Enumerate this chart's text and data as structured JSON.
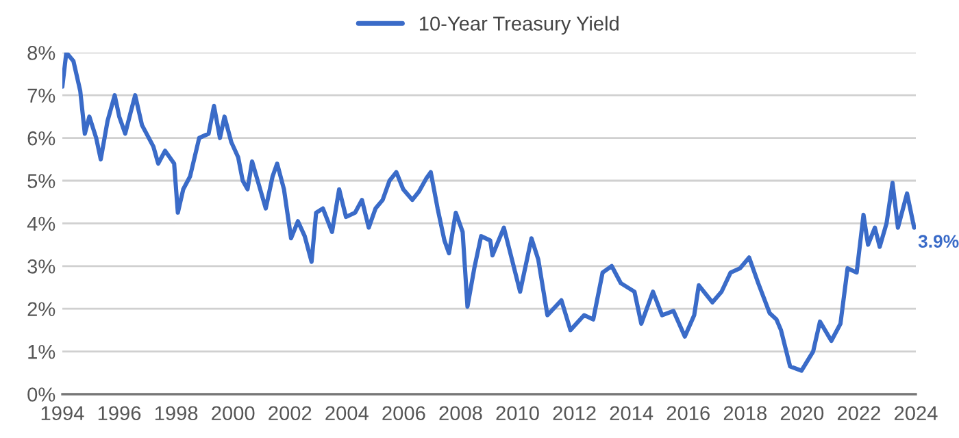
{
  "chart_data": {
    "type": "line",
    "x": [
      1994.0,
      1994.14,
      1994.39,
      1994.63,
      1994.79,
      1994.95,
      1995.19,
      1995.35,
      1995.59,
      1995.84,
      1996.0,
      1996.21,
      1996.4,
      1996.56,
      1996.8,
      1997.2,
      1997.37,
      1997.61,
      1997.93,
      1998.06,
      1998.25,
      1998.49,
      1998.81,
      1999.14,
      1999.33,
      1999.54,
      1999.7,
      1999.94,
      2000.18,
      2000.34,
      2000.51,
      2000.67,
      2000.91,
      2001.15,
      2001.39,
      2001.55,
      2001.79,
      2002.04,
      2002.28,
      2002.52,
      2002.76,
      2002.92,
      2003.16,
      2003.48,
      2003.73,
      2003.97,
      2004.29,
      2004.53,
      2004.77,
      2005.01,
      2005.26,
      2005.5,
      2005.74,
      2005.98,
      2006.3,
      2006.54,
      2006.79,
      2006.95,
      2007.19,
      2007.43,
      2007.59,
      2007.83,
      2008.07,
      2008.24,
      2008.48,
      2008.72,
      2009.04,
      2009.12,
      2009.52,
      2010.09,
      2010.49,
      2010.73,
      2011.05,
      2011.54,
      2011.86,
      2012.34,
      2012.66,
      2012.99,
      2013.31,
      2013.63,
      2014.11,
      2014.35,
      2014.76,
      2015.08,
      2015.48,
      2015.88,
      2016.21,
      2016.37,
      2016.85,
      2017.17,
      2017.49,
      2017.82,
      2018.14,
      2018.46,
      2018.86,
      2019.1,
      2019.26,
      2019.58,
      2019.98,
      2020.39,
      2020.63,
      2021.03,
      2021.35,
      2021.6,
      2021.92,
      2022.16,
      2022.32,
      2022.56,
      2022.73,
      2022.97,
      2023.18,
      2023.37,
      2023.69,
      2023.94
    ],
    "series": [
      {
        "name": "10-Year Treasury Yield",
        "color": "#3a6bc8",
        "values": [
          7.2,
          8.0,
          7.8,
          7.1,
          6.1,
          6.5,
          6.0,
          5.5,
          6.4,
          7.0,
          6.5,
          6.1,
          6.6,
          7.0,
          6.3,
          5.8,
          5.4,
          5.7,
          5.4,
          4.25,
          4.8,
          5.1,
          6.0,
          6.1,
          6.75,
          6.0,
          6.5,
          5.9,
          5.55,
          5.0,
          4.8,
          5.45,
          4.9,
          4.35,
          5.1,
          5.4,
          4.8,
          3.65,
          4.05,
          3.7,
          3.1,
          4.25,
          4.35,
          3.8,
          4.8,
          4.15,
          4.25,
          4.55,
          3.9,
          4.35,
          4.55,
          5.0,
          5.2,
          4.8,
          4.55,
          4.75,
          5.05,
          5.2,
          4.35,
          3.6,
          3.3,
          4.25,
          3.8,
          2.05,
          2.95,
          3.7,
          3.6,
          3.25,
          3.9,
          2.4,
          3.65,
          3.15,
          1.85,
          2.2,
          1.5,
          1.85,
          1.75,
          2.85,
          3.0,
          2.6,
          2.4,
          1.65,
          2.4,
          1.85,
          1.95,
          1.35,
          1.85,
          2.55,
          2.15,
          2.4,
          2.85,
          2.95,
          3.2,
          2.6,
          1.9,
          1.75,
          1.5,
          0.65,
          0.55,
          1.0,
          1.7,
          1.25,
          1.65,
          2.95,
          2.85,
          4.2,
          3.5,
          3.9,
          3.45,
          4.0,
          4.95,
          3.9,
          4.7,
          3.9
        ]
      }
    ],
    "annotations": [
      {
        "text": "3.9%",
        "x": 2023.94,
        "y": 3.9
      }
    ],
    "xlim": [
      1994,
      2024
    ],
    "xticks": [
      1994,
      1996,
      1998,
      2000,
      2002,
      2004,
      2006,
      2008,
      2010,
      2012,
      2014,
      2016,
      2018,
      2020,
      2022,
      2024
    ],
    "ylim": [
      0,
      8
    ],
    "yticks": [
      {
        "value": 0,
        "label": "0%"
      },
      {
        "value": 1,
        "label": "1%"
      },
      {
        "value": 2,
        "label": "2%"
      },
      {
        "value": 3,
        "label": "3%"
      },
      {
        "value": 4,
        "label": "4%"
      },
      {
        "value": 5,
        "label": "5%"
      },
      {
        "value": 6,
        "label": "6%"
      },
      {
        "value": 7,
        "label": "7%"
      },
      {
        "value": 8,
        "label": "8%"
      }
    ],
    "grid": "y",
    "legend": "top",
    "line_style": "solid",
    "marker": "none"
  }
}
